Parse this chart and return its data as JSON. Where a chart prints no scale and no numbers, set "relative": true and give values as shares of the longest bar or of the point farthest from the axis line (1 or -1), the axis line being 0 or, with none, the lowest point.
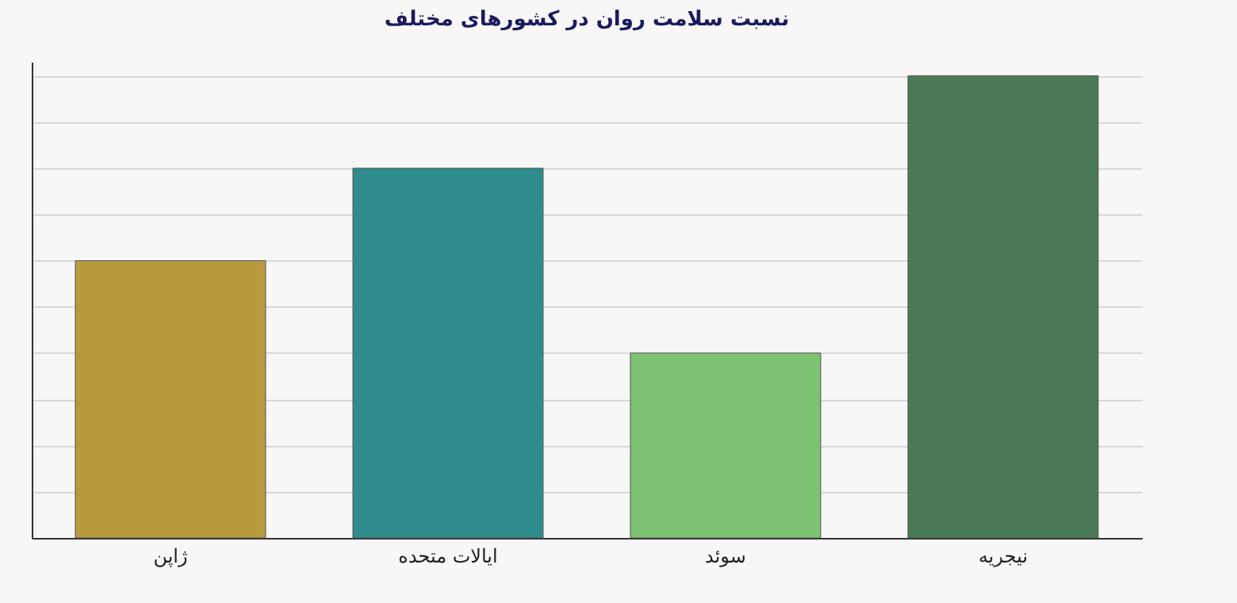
{
  "chart_data": {
    "type": "bar",
    "title": "نسبت سلامت روان در کشورهای مختلف",
    "categories": [
      "ژاپن",
      "ایالات متحده",
      "سوئد",
      "نیجریه"
    ],
    "values": [
      0.6,
      0.8,
      0.4,
      1.0
    ],
    "colors": [
      "#b89a3e",
      "#2f8c8c",
      "#7dc272",
      "#4a7a55"
    ],
    "relative": true,
    "grid": "y"
  }
}
